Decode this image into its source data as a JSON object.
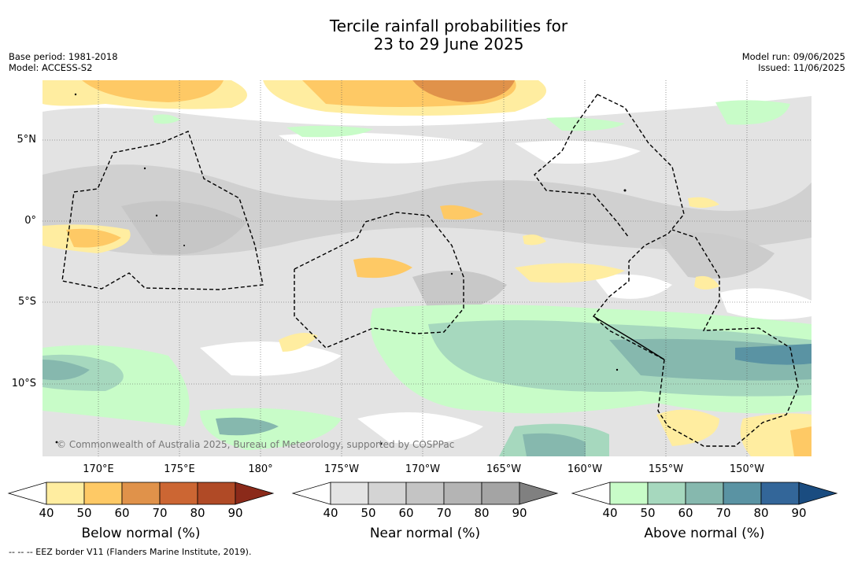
{
  "title_line1": "Tercile rainfall probabilities for",
  "title_line2": "23 to 29 June 2025",
  "meta_left": [
    "Base period: 1981-2018",
    "Model: ACCESS-S2"
  ],
  "meta_right": [
    "Model run: 09/06/2025",
    "Issued: 11/06/2025"
  ],
  "lat_labels": [
    "5°N",
    "0°",
    "5°S",
    "10°S"
  ],
  "lon_labels": [
    "170°E",
    "175°E",
    "180°",
    "175°W",
    "170°W",
    "165°W",
    "160°W",
    "155°W",
    "150°W"
  ],
  "copyright": "© Commonwealth of Australia 2025, Bureau of Meteorology, supported by COSPPac",
  "colorbars": [
    {
      "title": "Below normal (%)",
      "ticks": [
        "40",
        "50",
        "60",
        "70",
        "80",
        "90"
      ],
      "colors": [
        "#ffffff",
        "#ffeda0",
        "#fec965",
        "#e0924a",
        "#cc6633",
        "#b04a26",
        "#8b2a1a"
      ]
    },
    {
      "title": "Near normal (%)",
      "ticks": [
        "40",
        "50",
        "60",
        "70",
        "80",
        "90"
      ],
      "colors": [
        "#ffffff",
        "#e4e4e4",
        "#d4d4d4",
        "#c4c4c4",
        "#b4b4b4",
        "#a4a4a4",
        "#808080"
      ]
    },
    {
      "title": "Above normal (%)",
      "ticks": [
        "40",
        "50",
        "60",
        "70",
        "80",
        "90"
      ],
      "colors": [
        "#ffffff",
        "#c8fcc8",
        "#a6d8be",
        "#86b8ae",
        "#5a93a3",
        "#336699",
        "#1a4c80"
      ]
    }
  ],
  "footer": "--  --  -- EEZ border V11 (Flanders Marine Institute, 2019)."
}
